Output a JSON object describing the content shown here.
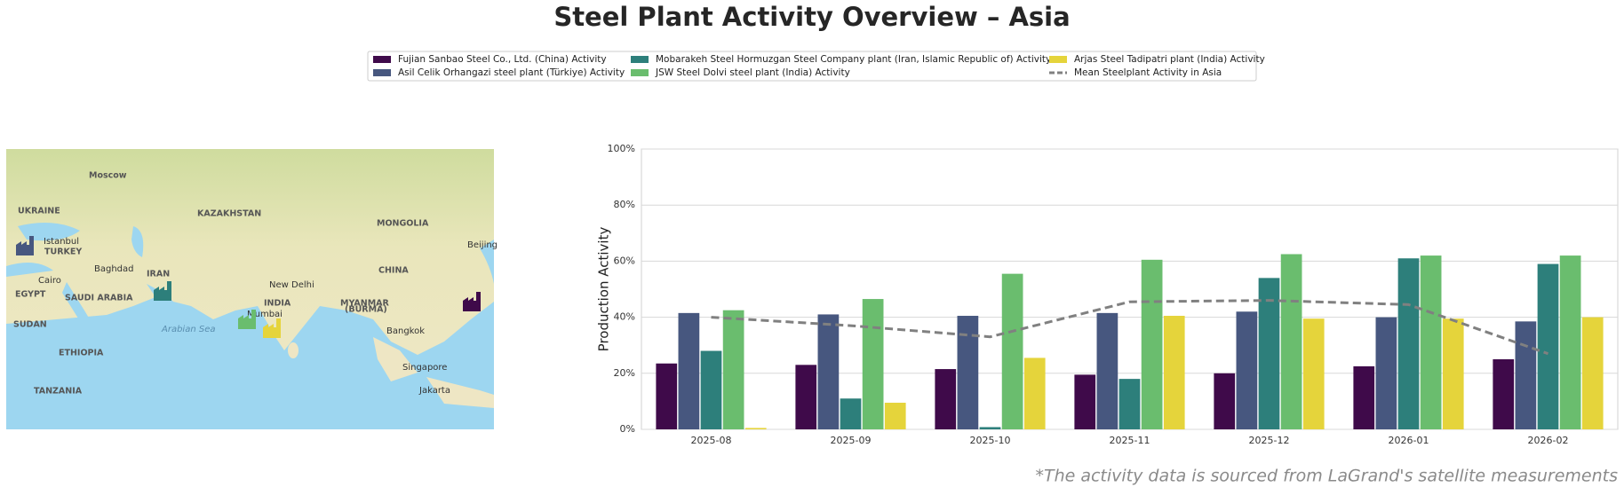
{
  "title": "Steel Plant Activity Overview – Asia",
  "footnote": "*The activity data is sourced from LaGrand's satellite measurements",
  "map": {
    "labels": [
      "Moscow",
      "UKRAINE",
      "Istanbul",
      "TURKEY",
      "KAZAKHSTAN",
      "MONGOLIA",
      "Beijing",
      "Baghdad",
      "Cairo",
      "IRAN",
      "CHINA",
      "EGYPT",
      "SAUDI ARABIA",
      "New Delhi",
      "INDIA",
      "Mumbai",
      "MYANMAR",
      "(BURMA)",
      "SUDAN",
      "Arabian Sea",
      "Bangkok",
      "ETHIOPIA",
      "Singapore",
      "TANZANIA",
      "Jakarta"
    ]
  },
  "chart_data": {
    "type": "bar",
    "y_label": "Production Activity",
    "categories": [
      "2025-08",
      "2025-09",
      "2025-10",
      "2025-11",
      "2025-12",
      "2026-01",
      "2026-02"
    ],
    "ylim": [
      0,
      100
    ],
    "yticks": [
      {
        "value": 0,
        "label": "0%"
      },
      {
        "value": 20,
        "label": "20%"
      },
      {
        "value": 40,
        "label": "40%"
      },
      {
        "value": 60,
        "label": "60%"
      },
      {
        "value": 80,
        "label": "80%"
      },
      {
        "value": 100,
        "label": "100%"
      }
    ],
    "grid": true,
    "series": [
      {
        "name": "Fujian Sanbao Steel Co., Ltd. (China) Activity",
        "color": "#3f0a4a",
        "values": [
          23.5,
          23,
          21.5,
          19.5,
          20,
          22.5,
          25
        ]
      },
      {
        "name": "Asil Celik Orhangazi steel plant (Türkiye) Activity",
        "color": "#47577f",
        "values": [
          41.5,
          41,
          40.5,
          41.5,
          42,
          40,
          38.5
        ]
      },
      {
        "name": "Mobarakeh Steel Hormuzgan Steel Company plant (Iran, Islamic Republic of) Activity",
        "color": "#2d7f7b",
        "values": [
          28,
          11,
          0.8,
          18,
          54,
          61,
          59
        ]
      },
      {
        "name": "JSW Steel Dolvi steel plant (India) Activity",
        "color": "#6abd6e",
        "values": [
          42.5,
          46.5,
          55.5,
          60.5,
          62.5,
          62,
          62
        ]
      },
      {
        "name": "Arjas Steel Tadipatri plant (India) Activity",
        "color": "#e5d43b",
        "values": [
          0.5,
          9.5,
          25.5,
          40.5,
          39.5,
          39.5,
          40
        ]
      },
      {
        "name": "Mean Steelplant Activity in Asia",
        "color": "#808080",
        "type": "line",
        "dashed": true,
        "values": [
          40,
          37,
          33,
          45.5,
          46,
          44.5,
          27
        ]
      }
    ]
  }
}
